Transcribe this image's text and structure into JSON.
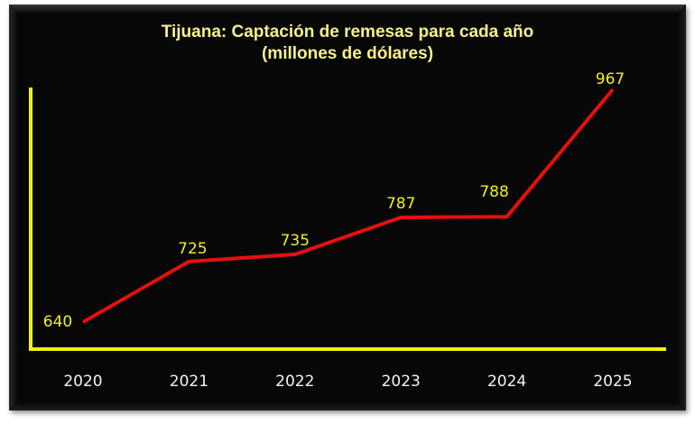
{
  "chart_data": {
    "type": "line",
    "title": "Tijuana: Captación de remesas para cada año",
    "subtitle": "(millones de dólares)",
    "categories": [
      "2020",
      "2021",
      "2022",
      "2023",
      "2024",
      "2025"
    ],
    "values": [
      640,
      725,
      735,
      787,
      788,
      967
    ],
    "data_labels": [
      "640",
      "725",
      "735",
      "787",
      "788",
      "967"
    ],
    "xlabel": "",
    "ylabel": "",
    "ylim": [
      520,
      1000
    ],
    "grid": false,
    "legend": null,
    "colors": {
      "line": "#e60f0f",
      "axis": "#f5f10f",
      "data_label": "#f2ee2a",
      "tick_label": "#f4f4f4",
      "title": "#f6f08a",
      "background": "#070707"
    }
  }
}
